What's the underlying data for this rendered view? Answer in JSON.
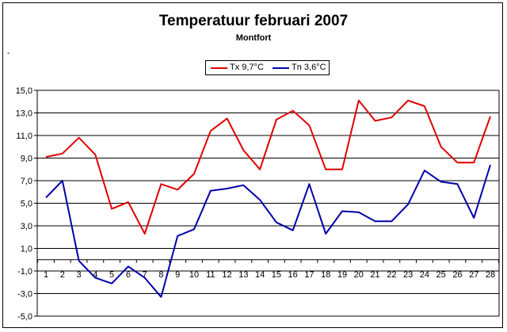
{
  "chart_data": {
    "type": "line",
    "title": "Temperatuur februari 2007",
    "subtitle": "Montfort",
    "mark": "-",
    "x": [
      1,
      2,
      3,
      4,
      5,
      6,
      7,
      8,
      9,
      10,
      11,
      12,
      13,
      14,
      15,
      16,
      17,
      18,
      19,
      20,
      21,
      22,
      23,
      24,
      25,
      26,
      27,
      28
    ],
    "x_tick_labels": [
      "1",
      "2",
      "3",
      "4",
      "5",
      "6",
      "7",
      "8",
      "9",
      "10",
      "11",
      "12",
      "13",
      "14",
      "15",
      "16",
      "17",
      "18",
      "19",
      "20",
      "21",
      "22",
      "23",
      "24",
      "25",
      "26",
      "27",
      "28"
    ],
    "y_ticks": [
      15,
      13,
      11,
      9,
      7,
      5,
      3,
      1,
      -1,
      -3,
      -5
    ],
    "y_tick_labels": [
      "15,0",
      "13,0",
      "11,0",
      "9,0",
      "7,0",
      "5,0",
      "3,0",
      "1,0",
      "-1,0",
      "-3,0",
      "-5,0"
    ],
    "ylim": [
      -5,
      15
    ],
    "grid": true,
    "legend_position": "top-center",
    "series": [
      {
        "name": "Tx 9,7°C",
        "color": "#e00000",
        "values": [
          9.1,
          9.4,
          10.8,
          9.3,
          4.5,
          5.1,
          2.3,
          6.7,
          6.2,
          7.6,
          11.4,
          12.5,
          9.7,
          8.0,
          12.4,
          13.2,
          11.9,
          8.0,
          8.0,
          14.1,
          12.3,
          12.6,
          14.1,
          13.6,
          10.0,
          8.6,
          8.6,
          12.7
        ]
      },
      {
        "name": "Tn 3,6°C",
        "color": "#0000aa",
        "values": [
          5.5,
          7.0,
          -0.1,
          -1.6,
          -2.1,
          -0.6,
          -1.6,
          -3.3,
          2.1,
          2.7,
          6.1,
          6.3,
          6.6,
          5.3,
          3.3,
          2.6,
          6.7,
          2.3,
          4.3,
          4.2,
          3.4,
          3.4,
          4.9,
          7.9,
          6.9,
          6.7,
          3.7,
          8.4
        ]
      }
    ]
  }
}
